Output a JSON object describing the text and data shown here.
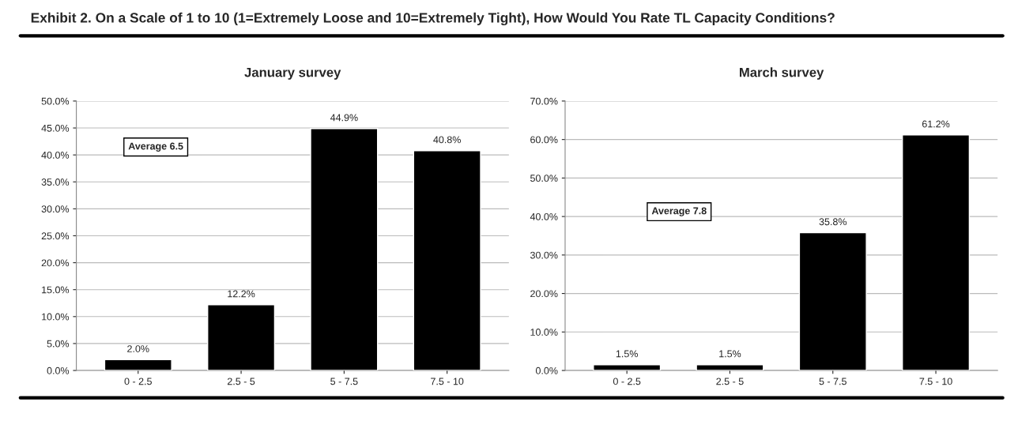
{
  "chart_data": [
    {
      "type": "bar",
      "subtitle": "Exhibit 2. On a Scale of 1 to 10 (1=Extremely Loose and 10=Extremely Tight), How Would You Rate TL Capacity Conditions?",
      "title": "January survey",
      "categories": [
        "0 - 2.5",
        "2.5 - 5",
        "5 - 7.5",
        "7.5 - 10"
      ],
      "values": [
        2.0,
        12.2,
        44.9,
        40.8
      ],
      "color": "#000000",
      "value_labels": [
        "2.0%",
        "12.2%",
        "44.9%",
        "40.8%"
      ],
      "ylim": [
        0,
        50
      ],
      "yticks": [
        {
          "value": 0,
          "label": "0.0%"
        },
        {
          "value": 5,
          "label": "5.0%"
        },
        {
          "value": 10,
          "label": "10.0%"
        },
        {
          "value": 15,
          "label": "15.0%"
        },
        {
          "value": 20,
          "label": "20.0%"
        },
        {
          "value": 25,
          "label": "25.0%"
        },
        {
          "value": 30,
          "label": "30.0%"
        },
        {
          "value": 35,
          "label": "35.0%"
        },
        {
          "value": 40,
          "label": "40.0%"
        },
        {
          "value": 45,
          "label": "45.0%"
        },
        {
          "value": 50,
          "label": "50.0%"
        }
      ],
      "grid": "y",
      "annotations": [
        "Average 6.5"
      ]
    },
    {
      "type": "bar",
      "title": "March survey",
      "categories": [
        "0 - 2.5",
        "2.5 - 5",
        "5 - 7.5",
        "7.5 - 10"
      ],
      "values": [
        1.5,
        1.5,
        35.8,
        61.2
      ],
      "color": "#000000",
      "value_labels": [
        "1.5%",
        "1.5%",
        "35.8%",
        "61.2%"
      ],
      "ylim": [
        0,
        70
      ],
      "yticks": [
        {
          "value": 0,
          "label": "0.0%"
        },
        {
          "value": 10,
          "label": "10.0%"
        },
        {
          "value": 20,
          "label": "20.0%"
        },
        {
          "value": 30,
          "label": "30.0%"
        },
        {
          "value": 40,
          "label": "40.0%"
        },
        {
          "value": 50,
          "label": "50.0%"
        },
        {
          "value": 60,
          "label": "60.0%"
        },
        {
          "value": 70,
          "label": "70.0%"
        }
      ],
      "grid": "y",
      "annotations": [
        "Average 7.8"
      ]
    }
  ]
}
